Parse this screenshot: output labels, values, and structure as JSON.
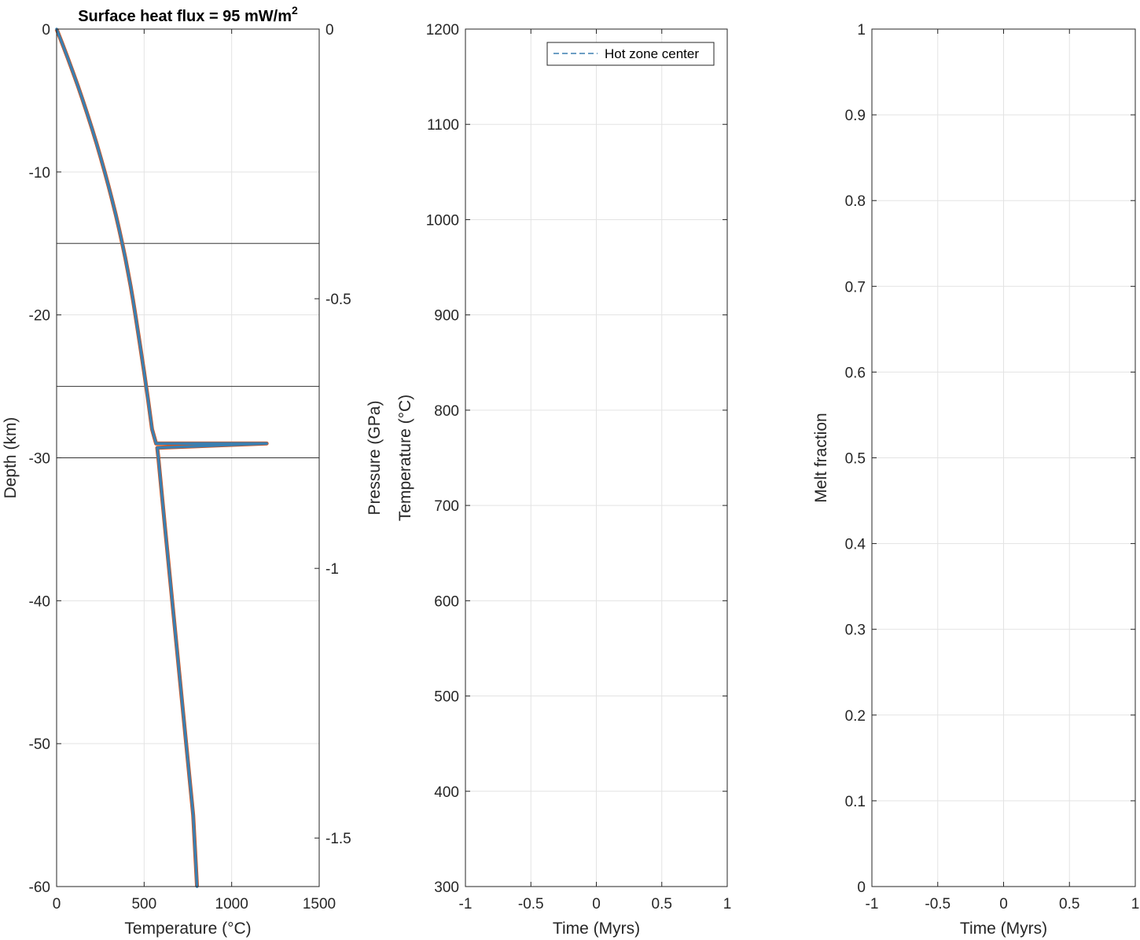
{
  "chart_data": [
    {
      "type": "line",
      "title": "Surface heat flux = 95 mW/m",
      "title_superscript": "2",
      "xlabel": "Temperature (°C)",
      "ylabel": "Depth (km)",
      "y2label": "Pressure (GPa)",
      "xlim": [
        0,
        1500
      ],
      "ylim": [
        -60,
        0
      ],
      "y2lim": [
        -1.59,
        0
      ],
      "xticks": [
        0,
        500,
        1000,
        1500
      ],
      "yticks": [
        0,
        -10,
        -20,
        -30,
        -40,
        -50,
        -60
      ],
      "y2ticks": [
        0,
        -0.5,
        -1,
        -1.5
      ],
      "grid": true,
      "series": [
        {
          "color": "#3b7fb0",
          "underlay_color": "#d95319",
          "points": [
            [
              0,
              0
            ],
            [
              32,
              -1
            ],
            [
              63,
              -2
            ],
            [
              93,
              -3
            ],
            [
              122,
              -4
            ],
            [
              150,
              -5
            ],
            [
              177,
              -6
            ],
            [
              203,
              -7
            ],
            [
              228,
              -8
            ],
            [
              252,
              -9
            ],
            [
              275,
              -10
            ],
            [
              297,
              -11
            ],
            [
              318,
              -12
            ],
            [
              338,
              -13
            ],
            [
              357,
              -14
            ],
            [
              375,
              -15
            ],
            [
              392,
              -16
            ],
            [
              408,
              -17
            ],
            [
              423,
              -18
            ],
            [
              437,
              -19
            ],
            [
              450,
              -20
            ],
            [
              475,
              -22
            ],
            [
              500,
              -24
            ],
            [
              523,
              -26
            ],
            [
              545,
              -28
            ],
            [
              568,
              -29
            ],
            [
              1200,
              -29
            ],
            [
              575,
              -29.3
            ],
            [
              581,
              -30
            ],
            [
              620,
              -35
            ],
            [
              660,
              -40
            ],
            [
              700,
              -45
            ],
            [
              740,
              -50
            ],
            [
              780,
              -55
            ],
            [
              802,
              -60
            ]
          ]
        }
      ],
      "reference_lines_y": [
        -15,
        -25,
        -30
      ]
    },
    {
      "type": "line",
      "xlabel": "Time (Myrs)",
      "ylabel": "Temperature (°C)",
      "xlim": [
        -1,
        1
      ],
      "ylim": [
        300,
        1200
      ],
      "xticks": [
        -1,
        -0.5,
        0,
        0.5,
        1
      ],
      "yticks": [
        300,
        400,
        500,
        600,
        700,
        800,
        900,
        1000,
        1100,
        1200
      ],
      "grid": true,
      "legend": {
        "position": "top-right",
        "entries": [
          {
            "name": "Hot zone center",
            "color": "#3b7fb0",
            "style": "dashed"
          }
        ]
      },
      "series": []
    },
    {
      "type": "line",
      "xlabel": "Time (Myrs)",
      "ylabel": "Melt fraction",
      "xlim": [
        -1,
        1
      ],
      "ylim": [
        0,
        1
      ],
      "xticks": [
        -1,
        -0.5,
        0,
        0.5,
        1
      ],
      "yticks": [
        0,
        0.1,
        0.2,
        0.3,
        0.4,
        0.5,
        0.6,
        0.7,
        0.8,
        0.9,
        1
      ],
      "grid": true,
      "series": []
    }
  ]
}
